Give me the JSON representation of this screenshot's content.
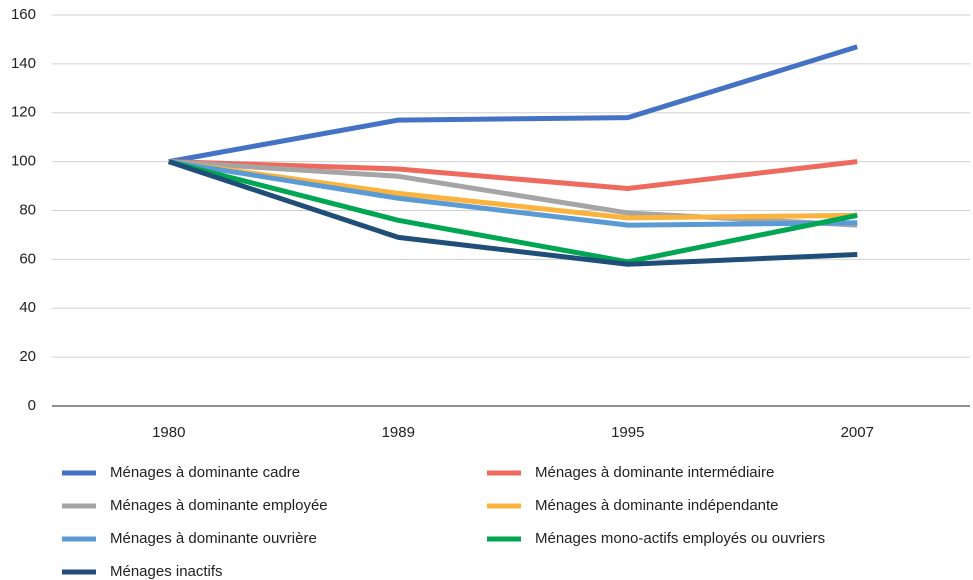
{
  "chart_data": {
    "type": "line",
    "categories": [
      "1980",
      "1989",
      "1995",
      "2007"
    ],
    "series": [
      {
        "name": "Ménages à dominante cadre",
        "color": "#4472c4",
        "values": [
          100,
          117,
          118,
          147
        ]
      },
      {
        "name": "Ménages à dominante intermédiaire",
        "color": "#ee6a5e",
        "values": [
          100,
          97,
          89,
          100
        ]
      },
      {
        "name": "Ménages à dominante employée",
        "color": "#a5a5a5",
        "values": [
          100,
          94,
          79,
          74
        ]
      },
      {
        "name": "Ménages à dominante indépendante",
        "color": "#fbb33d",
        "values": [
          100,
          87,
          77,
          78
        ]
      },
      {
        "name": "Ménages à dominante ouvrière",
        "color": "#5b9bd5",
        "values": [
          100,
          85,
          74,
          75
        ]
      },
      {
        "name": "Ménages mono-actifs employés ou ouvriers",
        "color": "#00a651",
        "values": [
          100,
          76,
          59,
          78
        ]
      },
      {
        "name": "Ménages inactifs",
        "color": "#1f4e79",
        "values": [
          100,
          69,
          58,
          62
        ]
      }
    ],
    "ylim": [
      0,
      160
    ],
    "yticks": [
      0,
      20,
      40,
      60,
      80,
      100,
      120,
      140,
      160
    ],
    "grid": true,
    "legend": "bottom"
  }
}
